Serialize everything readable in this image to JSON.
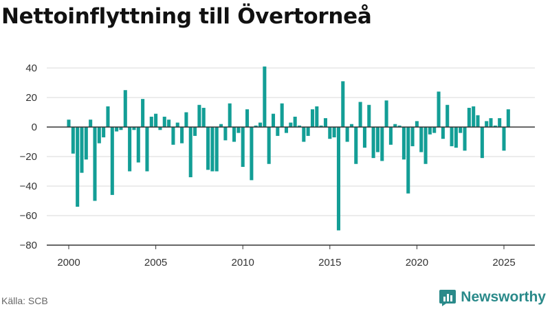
{
  "header": {
    "title": "Nettoinflyttning till Övertorneå"
  },
  "footer": {
    "source": "Källa: SCB",
    "brand": "Newsworthy"
  },
  "colors": {
    "bar": "#139e96",
    "grid": "#d9d9d9",
    "zero_line": "#333333",
    "brand": "#2a8a8a"
  },
  "icons": {
    "brand_logo": "bar-chart-logo-icon"
  },
  "chart_data": {
    "type": "bar",
    "title": "Nettoinflyttning till Övertorneå",
    "xlabel": "",
    "ylabel": "",
    "ylim": [
      -80,
      45
    ],
    "xlim": [
      1999.3,
      2026.7
    ],
    "yticks": [
      40,
      20,
      0,
      -20,
      -40,
      -60,
      -80
    ],
    "ytick_labels": [
      "40",
      "20",
      "0",
      "−20",
      "−40",
      "−60",
      "−80"
    ],
    "xticks": [
      2000,
      2005,
      2010,
      2015,
      2020,
      2025
    ],
    "xtick_labels": [
      "2000",
      "2005",
      "2010",
      "2015",
      "2020",
      "2025"
    ],
    "grid": true,
    "bar_width": 0.2,
    "x": [
      2000.0,
      2000.25,
      2000.5,
      2000.75,
      2001.0,
      2001.25,
      2001.5,
      2001.75,
      2002.0,
      2002.25,
      2002.5,
      2002.75,
      2003.0,
      2003.25,
      2003.5,
      2003.75,
      2004.0,
      2004.25,
      2004.5,
      2004.75,
      2005.0,
      2005.25,
      2005.5,
      2005.75,
      2006.0,
      2006.25,
      2006.5,
      2006.75,
      2007.0,
      2007.25,
      2007.5,
      2007.75,
      2008.0,
      2008.25,
      2008.5,
      2008.75,
      2009.0,
      2009.25,
      2009.5,
      2009.75,
      2010.0,
      2010.25,
      2010.5,
      2010.75,
      2011.0,
      2011.25,
      2011.5,
      2011.75,
      2012.0,
      2012.25,
      2012.5,
      2012.75,
      2013.0,
      2013.25,
      2013.5,
      2013.75,
      2014.0,
      2014.25,
      2014.5,
      2014.75,
      2015.0,
      2015.25,
      2015.5,
      2015.75,
      2016.0,
      2016.25,
      2016.5,
      2016.75,
      2017.0,
      2017.25,
      2017.5,
      2017.75,
      2018.0,
      2018.25,
      2018.5,
      2018.75,
      2019.0,
      2019.25,
      2019.5,
      2019.75,
      2020.0,
      2020.25,
      2020.5,
      2020.75,
      2021.0,
      2021.25,
      2021.5,
      2021.75,
      2022.0,
      2022.25,
      2022.5,
      2022.75,
      2023.0,
      2023.25,
      2023.5,
      2023.75,
      2024.0,
      2024.25,
      2024.5,
      2024.75,
      2025.0,
      2025.25
    ],
    "values": [
      5,
      -18,
      -54,
      -31,
      -22,
      5,
      -50,
      -11,
      -7,
      14,
      -46,
      -3,
      -2,
      25,
      -30,
      -2,
      -24,
      19,
      -30,
      7,
      9,
      -2,
      7,
      5,
      -12,
      3,
      -11,
      10,
      -34,
      -6,
      15,
      13,
      -29,
      -30,
      -30,
      2,
      -9,
      16,
      -10,
      -4,
      -27,
      12,
      -36,
      1,
      3,
      41,
      -25,
      9,
      -6,
      16,
      -4,
      3,
      7,
      1,
      -10,
      -6,
      12,
      14,
      1,
      6,
      -8,
      -7,
      -70,
      31,
      -10,
      2,
      -25,
      17,
      -14,
      15,
      -21,
      -17,
      -23,
      18,
      -12,
      2,
      1,
      -22,
      -45,
      -13,
      4,
      -17,
      -25,
      -5,
      -4,
      24,
      -8,
      15,
      -13,
      -14,
      -4,
      -16,
      13,
      14,
      8,
      -21,
      4,
      6,
      1,
      6,
      -16,
      12
    ]
  }
}
